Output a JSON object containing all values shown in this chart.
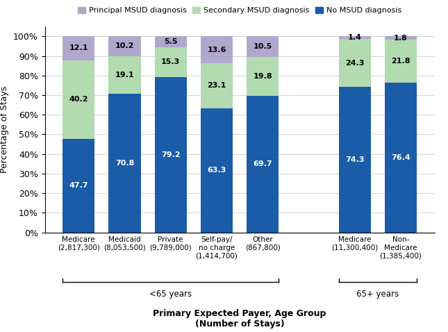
{
  "categories": [
    "Medicare\n(2,817,300)",
    "Medicaid\n(8,053,500)",
    "Private\n(9,789,000)",
    "Self-pay/\nno charge\n(1,414,700)",
    "Other\n(867,800)",
    "Medicare\n(11,300,400)",
    "Non-\nMedicare\n(1,385,400)"
  ],
  "no_msud": [
    47.7,
    70.8,
    79.2,
    63.3,
    69.7,
    74.3,
    76.4
  ],
  "secondary_msud": [
    40.2,
    19.1,
    15.3,
    23.1,
    19.8,
    24.3,
    21.8
  ],
  "principal_msud": [
    12.1,
    10.2,
    5.5,
    13.6,
    10.5,
    1.4,
    1.8
  ],
  "color_no_msud": "#1a5ca8",
  "color_secondary_msud": "#b2dbb0",
  "color_principal_msud": "#b0a8cc",
  "ylabel": "Percentage of Stays",
  "xlabel_line1": "Primary Expected Payer, Age Group",
  "xlabel_line2": "(Number of Stays)",
  "legend_labels": [
    "Principal MSUD diagnosis",
    "Secondary MSUD diagnosis",
    "No MSUD diagnosis"
  ],
  "yticks": [
    0,
    10,
    20,
    30,
    40,
    50,
    60,
    70,
    80,
    90,
    100
  ],
  "x_positions": [
    0,
    1,
    2,
    3,
    4,
    6,
    7
  ],
  "bar_width": 0.7,
  "group1_indices": [
    0,
    4
  ],
  "group2_indices": [
    5,
    6
  ],
  "group1_label": "<65 years",
  "group2_label": "65+ years"
}
